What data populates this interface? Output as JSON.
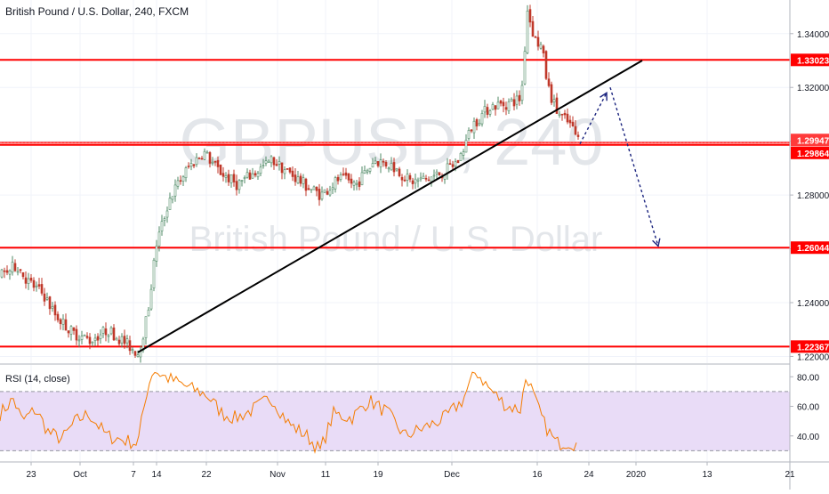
{
  "header": {
    "title": "British Pound / U.S. Dollar, 240, FXCM"
  },
  "watermark": {
    "symbol": "GBPUSD, 240",
    "name": "British Pound / U.S. Dollar"
  },
  "colors": {
    "up": "#4f8a66",
    "down": "#c0392b",
    "level": "#ff0000",
    "trend": "#000000",
    "forecast": "#1a237e",
    "rsi": "#f57c00",
    "rsi_band": "#e9dcf7"
  },
  "chart_data": [
    {
      "type": "candlestick",
      "title": "British Pound / U.S. Dollar, 240, FXCM",
      "x_ticks": [
        "23",
        "Oct",
        "7",
        "14",
        "22",
        "Nov",
        "11",
        "19",
        "Dec",
        "16",
        "24",
        "2020",
        "13",
        "21"
      ],
      "y_ticks": [
        "1.22000",
        "1.24000",
        "1.26000",
        "1.28000",
        "1.30000",
        "1.32000",
        "1.34000"
      ],
      "ylim": [
        1.2175,
        1.3525
      ],
      "price_path": [
        [
          0,
          1.25
        ],
        [
          18,
          1.254
        ],
        [
          30,
          1.248
        ],
        [
          48,
          1.243
        ],
        [
          60,
          1.236
        ],
        [
          80,
          1.229
        ],
        [
          100,
          1.226
        ],
        [
          120,
          1.23
        ],
        [
          140,
          1.225
        ],
        [
          155,
          1.221
        ],
        [
          165,
          1.236
        ],
        [
          175,
          1.262
        ],
        [
          190,
          1.279
        ],
        [
          210,
          1.29
        ],
        [
          228,
          1.296
        ],
        [
          245,
          1.289
        ],
        [
          265,
          1.284
        ],
        [
          285,
          1.288
        ],
        [
          305,
          1.293
        ],
        [
          325,
          1.288
        ],
        [
          345,
          1.283
        ],
        [
          360,
          1.28
        ],
        [
          380,
          1.286
        ],
        [
          400,
          1.284
        ],
        [
          420,
          1.293
        ],
        [
          440,
          1.291
        ],
        [
          460,
          1.285
        ],
        [
          480,
          1.286
        ],
        [
          500,
          1.289
        ],
        [
          515,
          1.293
        ],
        [
          530,
          1.306
        ],
        [
          550,
          1.313
        ],
        [
          570,
          1.314
        ],
        [
          585,
          1.316
        ],
        [
          592,
          1.349
        ],
        [
          600,
          1.338
        ],
        [
          608,
          1.335
        ],
        [
          615,
          1.32
        ],
        [
          625,
          1.311
        ],
        [
          640,
          1.306
        ],
        [
          650,
          1.3
        ]
      ],
      "levels": [
        "1.33023",
        "1.29947",
        "1.29864",
        "1.26044",
        "1.22367"
      ],
      "level_colors": [
        "#ff0000",
        "#ff3b3b",
        "#ff0000",
        "#ff0000",
        "#ff0000"
      ],
      "trendline": [
        [
          155,
          1.2215
        ],
        [
          722,
          1.33
        ]
      ],
      "forecast_path": [
        [
          652,
          1.299
        ],
        [
          682,
          1.318
        ],
        [
          686,
          1.32
        ],
        [
          740,
          1.261
        ]
      ],
      "grid": true
    },
    {
      "type": "line",
      "title": "RSI (14, close)",
      "y_ticks": [
        "40.00",
        "60.00",
        "80.00"
      ],
      "ylim": [
        23,
        88
      ],
      "bands": [
        30,
        70
      ],
      "rsi_path": [
        [
          0,
          55
        ],
        [
          15,
          65
        ],
        [
          25,
          50
        ],
        [
          40,
          58
        ],
        [
          55,
          42
        ],
        [
          70,
          38
        ],
        [
          85,
          50
        ],
        [
          100,
          55
        ],
        [
          120,
          40
        ],
        [
          140,
          37
        ],
        [
          155,
          35
        ],
        [
          165,
          70
        ],
        [
          172,
          85
        ],
        [
          185,
          80
        ],
        [
          200,
          76
        ],
        [
          215,
          72
        ],
        [
          232,
          68
        ],
        [
          250,
          55
        ],
        [
          265,
          52
        ],
        [
          285,
          58
        ],
        [
          305,
          66
        ],
        [
          325,
          48
        ],
        [
          345,
          40
        ],
        [
          360,
          30
        ],
        [
          375,
          55
        ],
        [
          395,
          52
        ],
        [
          415,
          64
        ],
        [
          435,
          56
        ],
        [
          455,
          40
        ],
        [
          475,
          45
        ],
        [
          500,
          52
        ],
        [
          520,
          64
        ],
        [
          535,
          84
        ],
        [
          550,
          72
        ],
        [
          570,
          60
        ],
        [
          585,
          58
        ],
        [
          592,
          82
        ],
        [
          602,
          63
        ],
        [
          612,
          48
        ],
        [
          625,
          35
        ],
        [
          640,
          36
        ],
        [
          650,
          34
        ]
      ]
    }
  ]
}
